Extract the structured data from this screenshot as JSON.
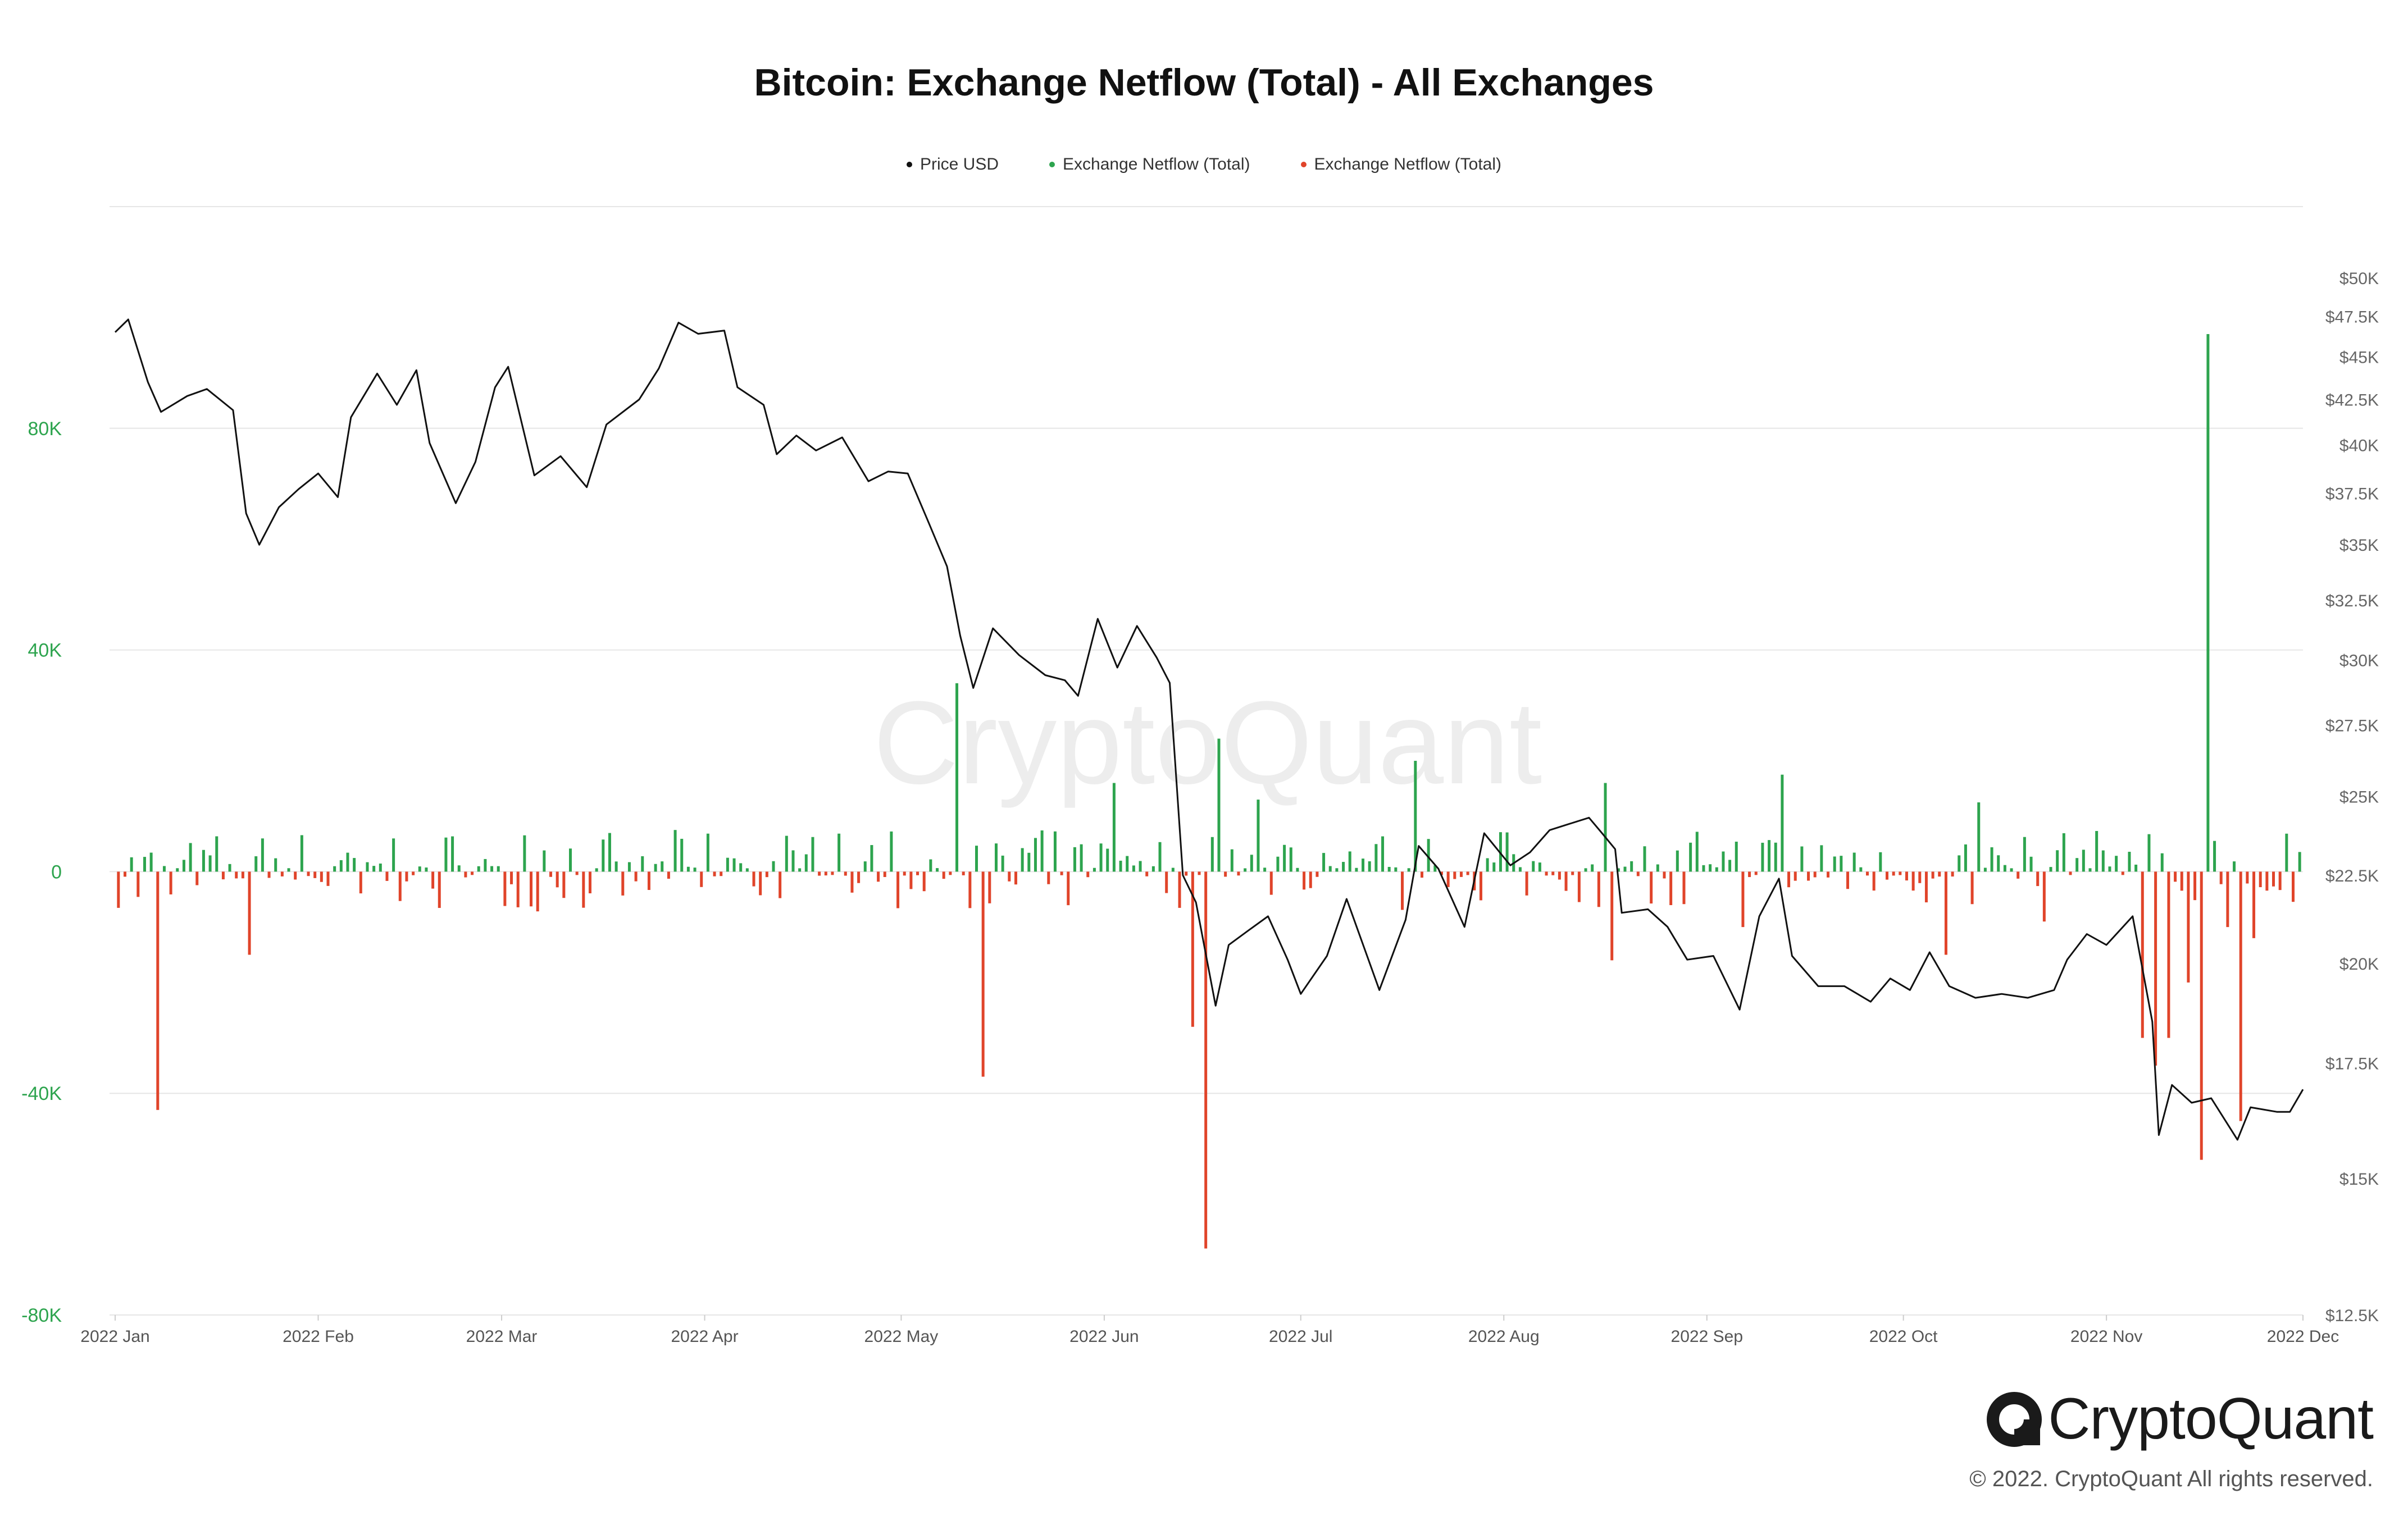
{
  "title": "Bitcoin: Exchange Netflow (Total) - All Exchanges",
  "legend": [
    {
      "label": "Price USD",
      "color": "#111111"
    },
    {
      "label": "Exchange Netflow (Total)",
      "color": "#2da44e"
    },
    {
      "label": "Exchange Netflow (Total)",
      "color": "#e0442a"
    }
  ],
  "watermark": "CryptoQuant",
  "logo_text": "CryptoQuant",
  "copyright": "© 2022. CryptoQuant All rights reserved.",
  "colors": {
    "inflow": "#2da44e",
    "outflow": "#e0442a",
    "price": "#111111",
    "grid": "#e6e6e6",
    "left_axis": "#2da44e",
    "right_axis": "#666666"
  },
  "chart_data": {
    "type": "bar+line",
    "x_range": [
      "2022-01-01",
      "2022-12-01"
    ],
    "x_tick_labels": [
      "2022 Jan",
      "2022 Feb",
      "2022 Mar",
      "2022 Apr",
      "2022 May",
      "2022 Jun",
      "2022 Jul",
      "2022 Aug",
      "2022 Sep",
      "2022 Oct",
      "2022 Nov",
      "2022 Dec"
    ],
    "left_axis": {
      "name": "Exchange Netflow (Total)",
      "range": [
        -80000,
        120000
      ],
      "tick_values": [
        -80000,
        -40000,
        0,
        40000,
        80000
      ],
      "tick_labels": [
        "-80K",
        "-40K",
        "0",
        "40K",
        "80K"
      ]
    },
    "right_axis": {
      "name": "Price USD",
      "scale": "log",
      "range": [
        12500,
        55000
      ],
      "tick_values": [
        12500,
        15000,
        17500,
        20000,
        22500,
        25000,
        27500,
        30000,
        32500,
        35000,
        37500,
        40000,
        42500,
        45000,
        47500,
        50000
      ],
      "tick_labels": [
        "$12.5K",
        "$15K",
        "$17.5K",
        "$20K",
        "$22.5K",
        "$25K",
        "$27.5K",
        "$30K",
        "$32.5K",
        "$35K",
        "$37.5K",
        "$40K",
        "$42.5K",
        "$45K",
        "$47.5K",
        "$50K"
      ]
    },
    "netflow_notable": [
      {
        "date": "2022-01-07",
        "value": -43000
      },
      {
        "date": "2022-01-21",
        "value": -15000
      },
      {
        "date": "2022-05-09",
        "value": 34000
      },
      {
        "date": "2022-05-13",
        "value": -37000
      },
      {
        "date": "2022-06-02",
        "value": 16000
      },
      {
        "date": "2022-06-14",
        "value": -28000
      },
      {
        "date": "2022-06-16",
        "value": -68000
      },
      {
        "date": "2022-06-18",
        "value": 24000
      },
      {
        "date": "2022-06-24",
        "value": 13000
      },
      {
        "date": "2022-07-18",
        "value": 20000
      },
      {
        "date": "2022-08-16",
        "value": 16000
      },
      {
        "date": "2022-08-17",
        "value": -16000
      },
      {
        "date": "2022-09-06",
        "value": -10000
      },
      {
        "date": "2022-09-12",
        "value": 17500
      },
      {
        "date": "2022-10-07",
        "value": -15000
      },
      {
        "date": "2022-10-12",
        "value": 12500
      },
      {
        "date": "2022-10-22",
        "value": -9000
      },
      {
        "date": "2022-11-06",
        "value": -30000
      },
      {
        "date": "2022-11-08",
        "value": -35000
      },
      {
        "date": "2022-11-10",
        "value": -30000
      },
      {
        "date": "2022-11-13",
        "value": -20000
      },
      {
        "date": "2022-11-15",
        "value": -52000
      },
      {
        "date": "2022-11-16",
        "value": 97000
      },
      {
        "date": "2022-11-19",
        "value": -10000
      },
      {
        "date": "2022-11-21",
        "value": -45000
      },
      {
        "date": "2022-11-23",
        "value": -12000
      }
    ],
    "price_usd": [
      [
        "2022-01-01",
        46500
      ],
      [
        "2022-01-03",
        47300
      ],
      [
        "2022-01-06",
        43500
      ],
      [
        "2022-01-08",
        41800
      ],
      [
        "2022-01-12",
        42700
      ],
      [
        "2022-01-15",
        43100
      ],
      [
        "2022-01-19",
        41900
      ],
      [
        "2022-01-21",
        36500
      ],
      [
        "2022-01-23",
        35000
      ],
      [
        "2022-01-26",
        36800
      ],
      [
        "2022-01-29",
        37700
      ],
      [
        "2022-02-01",
        38500
      ],
      [
        "2022-02-04",
        37300
      ],
      [
        "2022-02-06",
        41500
      ],
      [
        "2022-02-10",
        44000
      ],
      [
        "2022-02-13",
        42200
      ],
      [
        "2022-02-16",
        44200
      ],
      [
        "2022-02-18",
        40100
      ],
      [
        "2022-02-22",
        37000
      ],
      [
        "2022-02-25",
        39100
      ],
      [
        "2022-02-28",
        43200
      ],
      [
        "2022-03-02",
        44400
      ],
      [
        "2022-03-06",
        38400
      ],
      [
        "2022-03-10",
        39400
      ],
      [
        "2022-03-14",
        37800
      ],
      [
        "2022-03-17",
        41100
      ],
      [
        "2022-03-22",
        42500
      ],
      [
        "2022-03-25",
        44300
      ],
      [
        "2022-03-28",
        47100
      ],
      [
        "2022-03-31",
        46400
      ],
      [
        "2022-04-04",
        46600
      ],
      [
        "2022-04-06",
        43200
      ],
      [
        "2022-04-10",
        42200
      ],
      [
        "2022-04-12",
        39500
      ],
      [
        "2022-04-15",
        40500
      ],
      [
        "2022-04-18",
        39700
      ],
      [
        "2022-04-22",
        40400
      ],
      [
        "2022-04-26",
        38100
      ],
      [
        "2022-04-29",
        38600
      ],
      [
        "2022-05-02",
        38500
      ],
      [
        "2022-05-05",
        36200
      ],
      [
        "2022-05-08",
        34000
      ],
      [
        "2022-05-10",
        31000
      ],
      [
        "2022-05-12",
        28900
      ],
      [
        "2022-05-15",
        31300
      ],
      [
        "2022-05-19",
        30200
      ],
      [
        "2022-05-23",
        29400
      ],
      [
        "2022-05-26",
        29200
      ],
      [
        "2022-05-28",
        28600
      ],
      [
        "2022-05-31",
        31700
      ],
      [
        "2022-06-03",
        29700
      ],
      [
        "2022-06-06",
        31400
      ],
      [
        "2022-06-09",
        30100
      ],
      [
        "2022-06-11",
        29100
      ],
      [
        "2022-06-13",
        22500
      ],
      [
        "2022-06-15",
        21700
      ],
      [
        "2022-06-18",
        18900
      ],
      [
        "2022-06-20",
        20500
      ],
      [
        "2022-06-23",
        20900
      ],
      [
        "2022-06-26",
        21300
      ],
      [
        "2022-06-29",
        20100
      ],
      [
        "2022-07-01",
        19200
      ],
      [
        "2022-07-05",
        20200
      ],
      [
        "2022-07-08",
        21800
      ],
      [
        "2022-07-13",
        19300
      ],
      [
        "2022-07-17",
        21200
      ],
      [
        "2022-07-19",
        23400
      ],
      [
        "2022-07-22",
        22700
      ],
      [
        "2022-07-26",
        21000
      ],
      [
        "2022-07-29",
        23800
      ],
      [
        "2022-08-02",
        22800
      ],
      [
        "2022-08-05",
        23200
      ],
      [
        "2022-08-08",
        23900
      ],
      [
        "2022-08-11",
        24100
      ],
      [
        "2022-08-14",
        24300
      ],
      [
        "2022-08-16",
        23800
      ],
      [
        "2022-08-18",
        23300
      ],
      [
        "2022-08-19",
        21400
      ],
      [
        "2022-08-23",
        21500
      ],
      [
        "2022-08-26",
        21000
      ],
      [
        "2022-08-29",
        20100
      ],
      [
        "2022-09-02",
        20200
      ],
      [
        "2022-09-06",
        18800
      ],
      [
        "2022-09-09",
        21300
      ],
      [
        "2022-09-12",
        22400
      ],
      [
        "2022-09-14",
        20200
      ],
      [
        "2022-09-18",
        19400
      ],
      [
        "2022-09-22",
        19400
      ],
      [
        "2022-09-26",
        19000
      ],
      [
        "2022-09-29",
        19600
      ],
      [
        "2022-10-02",
        19300
      ],
      [
        "2022-10-05",
        20300
      ],
      [
        "2022-10-08",
        19400
      ],
      [
        "2022-10-12",
        19100
      ],
      [
        "2022-10-16",
        19200
      ],
      [
        "2022-10-20",
        19100
      ],
      [
        "2022-10-24",
        19300
      ],
      [
        "2022-10-26",
        20100
      ],
      [
        "2022-10-29",
        20800
      ],
      [
        "2022-11-01",
        20500
      ],
      [
        "2022-11-05",
        21300
      ],
      [
        "2022-11-08",
        18500
      ],
      [
        "2022-11-09",
        15900
      ],
      [
        "2022-11-11",
        17000
      ],
      [
        "2022-11-14",
        16600
      ],
      [
        "2022-11-17",
        16700
      ],
      [
        "2022-11-21",
        15800
      ],
      [
        "2022-11-23",
        16500
      ],
      [
        "2022-11-27",
        16400
      ],
      [
        "2022-11-29",
        16400
      ],
      [
        "2022-12-01",
        16900
      ]
    ]
  }
}
